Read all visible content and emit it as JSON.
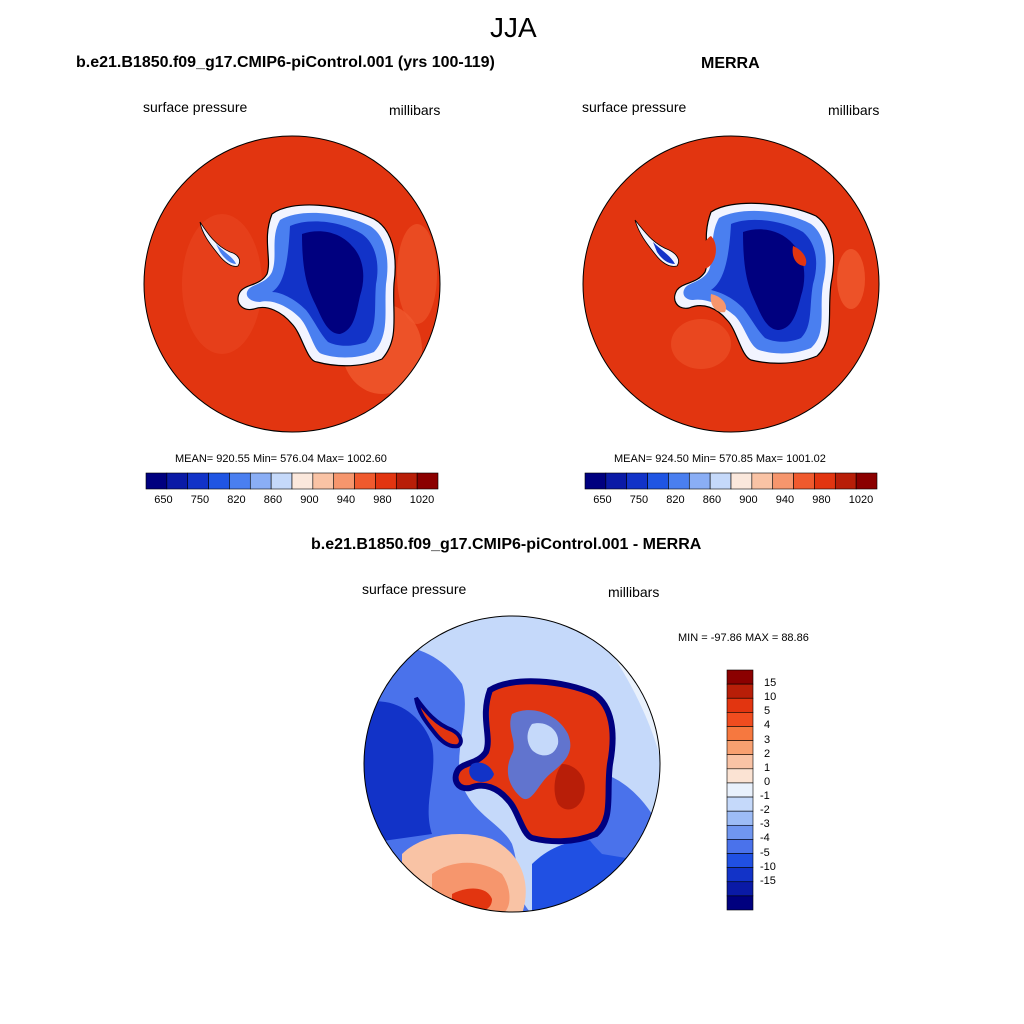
{
  "page_title": "JJA",
  "panels": [
    {
      "title": "b.e21.B1850.f09_g17.CMIP6-piControl.001 (yrs 100-119)",
      "left_label": "surface pressure",
      "right_label": "millibars",
      "stats": "MEAN= 920.55  Min= 576.04  Max= 1002.60"
    },
    {
      "title": "MERRA",
      "left_label": "surface pressure",
      "right_label": "millibars",
      "stats": "MEAN= 924.50  Min= 570.85  Max= 1001.02"
    },
    {
      "title": "b.e21.B1850.f09_g17.CMIP6-piControl.001 - MERRA",
      "left_label": "surface pressure",
      "right_label": "millibars",
      "stats": "MIN = -97.86 MAX =  88.86"
    }
  ],
  "colorbar_abs": {
    "colors": [
      "#00007f",
      "#0a1aa6",
      "#1233c8",
      "#1f55e3",
      "#4a7ff0",
      "#8aaef5",
      "#c5d9fa",
      "#fbe8dc",
      "#f9c3a5",
      "#f6966d",
      "#f05a2e",
      "#e23510",
      "#b81e08",
      "#8b0000"
    ],
    "tick_labels": [
      "650",
      "750",
      "820",
      "860",
      "900",
      "940",
      "980",
      "1020"
    ]
  },
  "colorbar_diff": {
    "colors_top_to_bottom": [
      "#8b0000",
      "#b81e08",
      "#e23510",
      "#f04c1f",
      "#f6783f",
      "#f8a070",
      "#f9c3a5",
      "#fbe3d3",
      "#e9f1fc",
      "#c5d9fa",
      "#9dbcf6",
      "#7096f0",
      "#4a72eb",
      "#2050e3",
      "#1233c8",
      "#0a1aa6",
      "#00007f"
    ],
    "tick_labels": [
      "15",
      "10",
      "5",
      "4",
      "3",
      "2",
      "1",
      "0",
      "-1",
      "-2",
      "-3",
      "-4",
      "-5",
      "-10",
      "-15"
    ]
  },
  "map_colors": {
    "ocean_warm": "#e23510",
    "ocean_edge": "#f05a2e",
    "ice_deep": "#00007f",
    "ice_mid": "#1233c8",
    "ice_light": "#4a7ff0",
    "coast_white": "#f2f4ff",
    "diff_ocean_light": "#c5d9fa",
    "diff_ocean_mid": "#4a7ff0",
    "diff_warm": "#f6966d"
  }
}
